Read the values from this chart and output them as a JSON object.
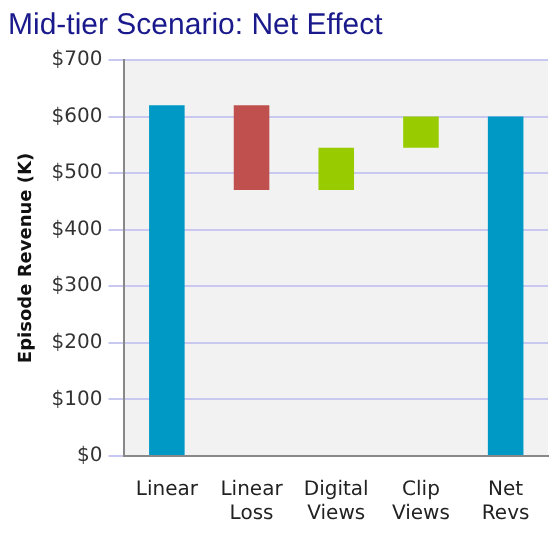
{
  "chart_data": {
    "type": "bar",
    "title": "Mid-tier Scenario: Net Effect",
    "ylabel": "Episode Revenue (K)",
    "categories": [
      "Linear",
      "Linear Loss",
      "Digital Views",
      "Clip Views",
      "Net Revs"
    ],
    "values": [
      620,
      -150,
      75,
      55,
      600
    ],
    "base": [
      0,
      620,
      470,
      545,
      0
    ],
    "colors": [
      "#0099c6",
      "#c0504d",
      "#99cc00",
      "#99cc00",
      "#0099c6"
    ],
    "ylim": [
      0,
      700
    ],
    "yticks": [
      {
        "value": 0,
        "label": "$0"
      },
      {
        "value": 100,
        "label": "$100"
      },
      {
        "value": 200,
        "label": "$200"
      },
      {
        "value": 300,
        "label": "$300"
      },
      {
        "value": 400,
        "label": "$400"
      },
      {
        "value": 500,
        "label": "$500"
      },
      {
        "value": 600,
        "label": "$600"
      },
      {
        "value": 700,
        "label": "$700"
      }
    ],
    "grid": "y",
    "legend": false
  }
}
